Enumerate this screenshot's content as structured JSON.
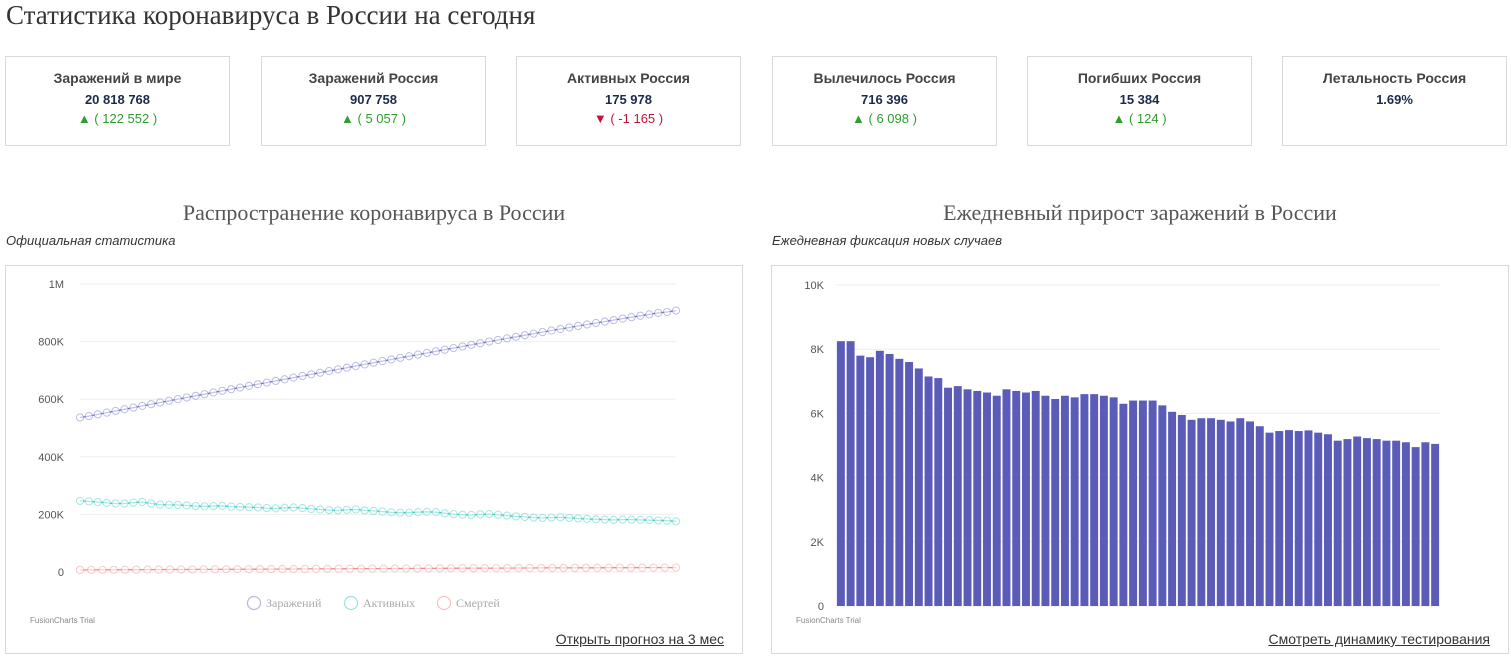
{
  "page": {
    "title": "Статистика коронавируса в России на сегодня"
  },
  "stats": [
    {
      "label": "Заражений в мире",
      "value": "20 818 768",
      "delta": "▲ ( 122 552 )",
      "dir": "up"
    },
    {
      "label": "Заражений Россия",
      "value": "907 758",
      "delta": "▲ ( 5 057 )",
      "dir": "up"
    },
    {
      "label": "Активных Россия",
      "value": "175 978",
      "delta": "▼ ( -1 165 )",
      "dir": "down"
    },
    {
      "label": "Вылечилось Россия",
      "value": "716 396",
      "delta": "▲ ( 6 098 )",
      "dir": "up"
    },
    {
      "label": "Погибших Россия",
      "value": "15 384",
      "delta": "▲ ( 124 )",
      "dir": "up"
    },
    {
      "label": "Летальность Россия",
      "value": "1.69%",
      "delta": "",
      "dir": "none"
    }
  ],
  "colors": {
    "up": "#2e9e2e",
    "down": "#c0143c",
    "bar": "#5b5bb8",
    "infected": "#6f6fc4",
    "active": "#35c9c0",
    "deaths": "#f08c8c"
  },
  "left": {
    "title": "Распространение коронавируса в России",
    "subtitle": "Официальная статистика",
    "link": "Открыть прогноз на 3 мес",
    "watermark": "FusionCharts Trial"
  },
  "right": {
    "title": "Ежедневный прирост заражений в России",
    "subtitle": "Ежедневная фиксация новых случаев",
    "link": "Смотреть динамику тестирования",
    "watermark": "FusionCharts Trial"
  },
  "chart_data": [
    {
      "type": "line",
      "ylim": [
        0,
        1000000
      ],
      "y_ticks": [
        "0",
        "200K",
        "400K",
        "600K",
        "800K",
        "1M"
      ],
      "legend_position": "bottom",
      "series": [
        {
          "name": "Заражений",
          "color": "#6f6fc4",
          "values": [
            536484,
            541387,
            547383,
            553373,
            559202,
            565056,
            570875,
            576717,
            582669,
            588622,
            594461,
            600228,
            606004,
            611745,
            617467,
            623178,
            628978,
            634706,
            640471,
            646215,
            652045,
            657784,
            663476,
            669203,
            674893,
            680694,
            686403,
            692100,
            697853,
            703623,
            709412,
            715154,
            720913,
            726707,
            732363,
            738003,
            743638,
            749254,
            754882,
            760567,
            766237,
            771888,
            777468,
            783129,
            788763,
            794459,
            800047,
            805606,
            811166,
            816680,
            822144,
            827666,
            833084,
            838450,
            843716,
            848997,
            854223,
            859500,
            864637,
            869678,
            874742,
            879717,
            884730,
            889649,
            894592,
            899749,
            902701,
            907758
          ]
        },
        {
          "name": "Активных",
          "color": "#35c9c0",
          "values": [
            247000,
            245000,
            243000,
            240000,
            238000,
            238000,
            241000,
            243000,
            238000,
            234000,
            233000,
            233000,
            231000,
            229000,
            228000,
            229000,
            230000,
            227000,
            226000,
            225000,
            224000,
            222000,
            221000,
            223000,
            224000,
            222000,
            219000,
            217000,
            215000,
            214000,
            216000,
            217000,
            214000,
            212000,
            210000,
            207000,
            206000,
            206000,
            208000,
            209000,
            208000,
            204000,
            201000,
            199000,
            198000,
            200000,
            201000,
            199000,
            196000,
            193000,
            191000,
            189000,
            188000,
            189000,
            190000,
            188000,
            186000,
            184000,
            183000,
            182000,
            181000,
            182000,
            182000,
            181000,
            180000,
            179000,
            178000,
            175978
          ]
        },
        {
          "name": "Смертей",
          "color": "#f08c8c",
          "values": [
            7081,
            7274,
            7468,
            7660,
            7841,
            8002,
            8196,
            8359,
            8536,
            8711,
            8867,
            9060,
            9152,
            9320,
            9493,
            9668,
            9859,
            10027,
            10296,
            10478,
            10650,
            10843,
            11017,
            11188,
            11335,
            11520,
            11701,
            11877,
            12054,
            12227,
            12342,
            12580,
            12745,
            12892,
            13026,
            13172,
            13354,
            13504,
            13673,
            13802,
            13963,
            14104,
            14207,
            14351,
            14490,
            14606,
            14725,
            14827,
            14931,
            15001,
            15131,
            15231,
            15260,
            15384
          ]
        }
      ]
    },
    {
      "type": "bar",
      "ylim": [
        0,
        10000
      ],
      "y_ticks": [
        "0",
        "2K",
        "4K",
        "6K",
        "8K",
        "10K"
      ],
      "series": [
        {
          "name": "",
          "values": [
            8250,
            8250,
            7800,
            7750,
            7950,
            7850,
            7700,
            7600,
            7400,
            7150,
            7100,
            6800,
            6850,
            6750,
            6700,
            6650,
            6550,
            6750,
            6700,
            6650,
            6700,
            6550,
            6450,
            6550,
            6500,
            6600,
            6600,
            6550,
            6500,
            6300,
            6400,
            6400,
            6400,
            6250,
            6050,
            5950,
            5800,
            5850,
            5850,
            5800,
            5750,
            5850,
            5750,
            5600,
            5400,
            5450,
            5480,
            5450,
            5470,
            5400,
            5350,
            5150,
            5200,
            5280,
            5230,
            5200,
            5150,
            5150,
            5100,
            4950,
            5100,
            5050
          ]
        }
      ]
    }
  ]
}
